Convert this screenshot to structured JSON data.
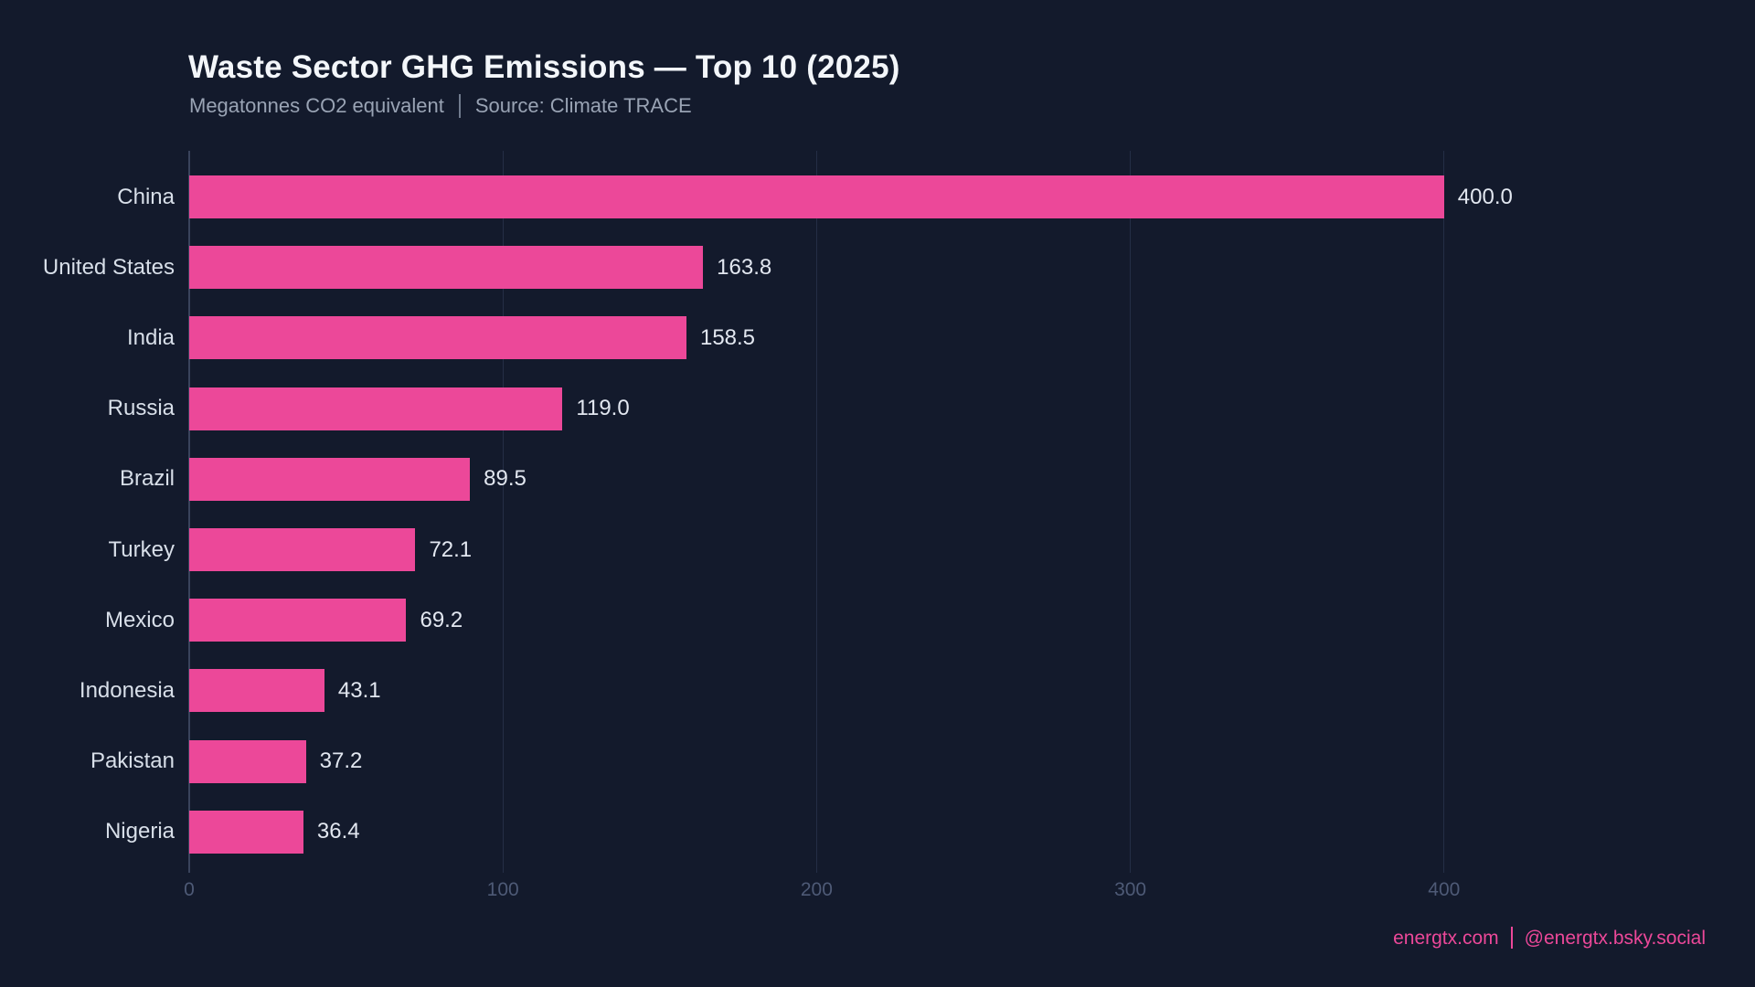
{
  "chart_data": {
    "type": "bar",
    "orientation": "horizontal",
    "title": "Waste Sector GHG Emissions — Top 10 (2025)",
    "subtitle_units": "Megatonnes CO2 equivalent",
    "subtitle_source": "Source: Climate TRACE",
    "categories": [
      "China",
      "United States",
      "India",
      "Russia",
      "Brazil",
      "Turkey",
      "Mexico",
      "Indonesia",
      "Pakistan",
      "Nigeria"
    ],
    "values": [
      400.0,
      163.8,
      158.5,
      119.0,
      89.5,
      72.1,
      69.2,
      43.1,
      37.2,
      36.4
    ],
    "value_labels": [
      "400.0",
      "163.8",
      "158.5",
      "119.0",
      "89.5",
      "72.1",
      "69.2",
      "43.1",
      "37.2",
      "36.4"
    ],
    "xlabel": "",
    "ylabel": "",
    "xlim": [
      0,
      400
    ],
    "x_ticks": [
      0,
      100,
      200,
      300,
      400
    ],
    "x_tick_labels": [
      "0",
      "100",
      "200",
      "300",
      "400"
    ],
    "grid": "vertical",
    "legend": "none",
    "bar_color": "#ec4899",
    "background_color": "#131a2c"
  },
  "footer": {
    "site": "energtx.com",
    "handle": "@energtx.bsky.social",
    "color": "#ec4899"
  }
}
